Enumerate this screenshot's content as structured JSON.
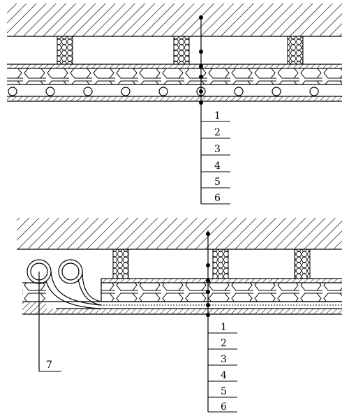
{
  "figure": {
    "description_kind": "construction cross-section",
    "colors": {
      "ink": "#000000",
      "paper": "#ffffff"
    }
  },
  "top_section": {
    "layer_labels": [
      "1",
      "2",
      "3",
      "4",
      "5",
      "6"
    ]
  },
  "bottom_section": {
    "layer_labels": [
      "1",
      "2",
      "3",
      "4",
      "5",
      "6"
    ],
    "pipe_label": "7"
  }
}
